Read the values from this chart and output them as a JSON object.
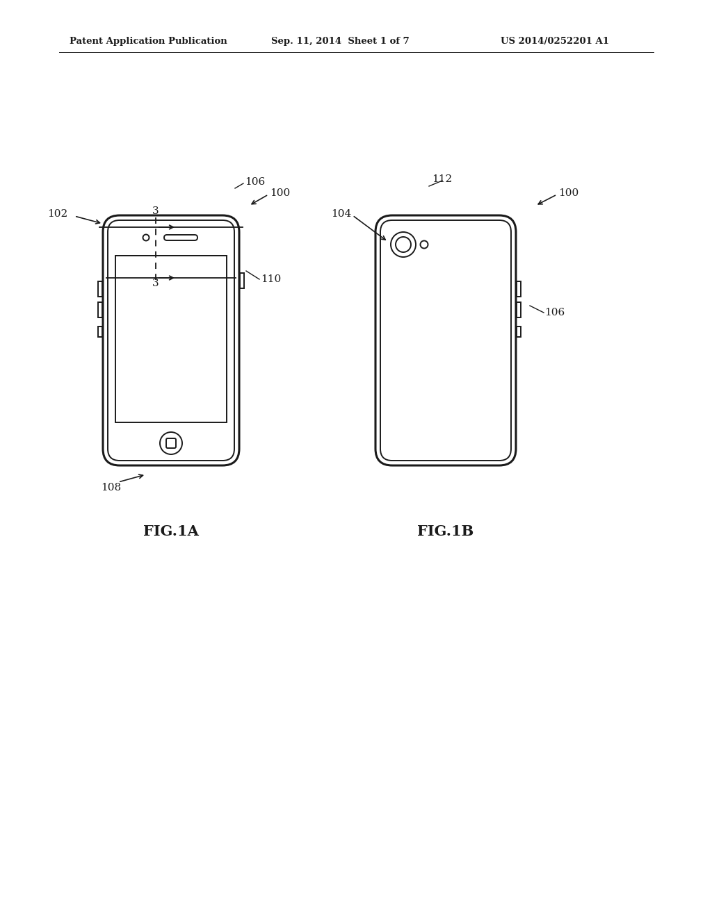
{
  "bg_color": "#ffffff",
  "line_color": "#1a1a1a",
  "header_left": "Patent Application Publication",
  "header_center": "Sep. 11, 2014  Sheet 1 of 7",
  "header_right": "US 2014/0252201 A1",
  "fig1a_label": "FIG.1A",
  "fig1b_label": "FIG.1B",
  "lw_outer": 2.2,
  "lw_inner": 1.4,
  "labels": {
    "100a": "100",
    "100b": "100",
    "102": "102",
    "104": "104",
    "106a": "106",
    "106b": "106",
    "108": "108",
    "110": "110",
    "112": "112",
    "3a": "3",
    "3b": "3"
  }
}
